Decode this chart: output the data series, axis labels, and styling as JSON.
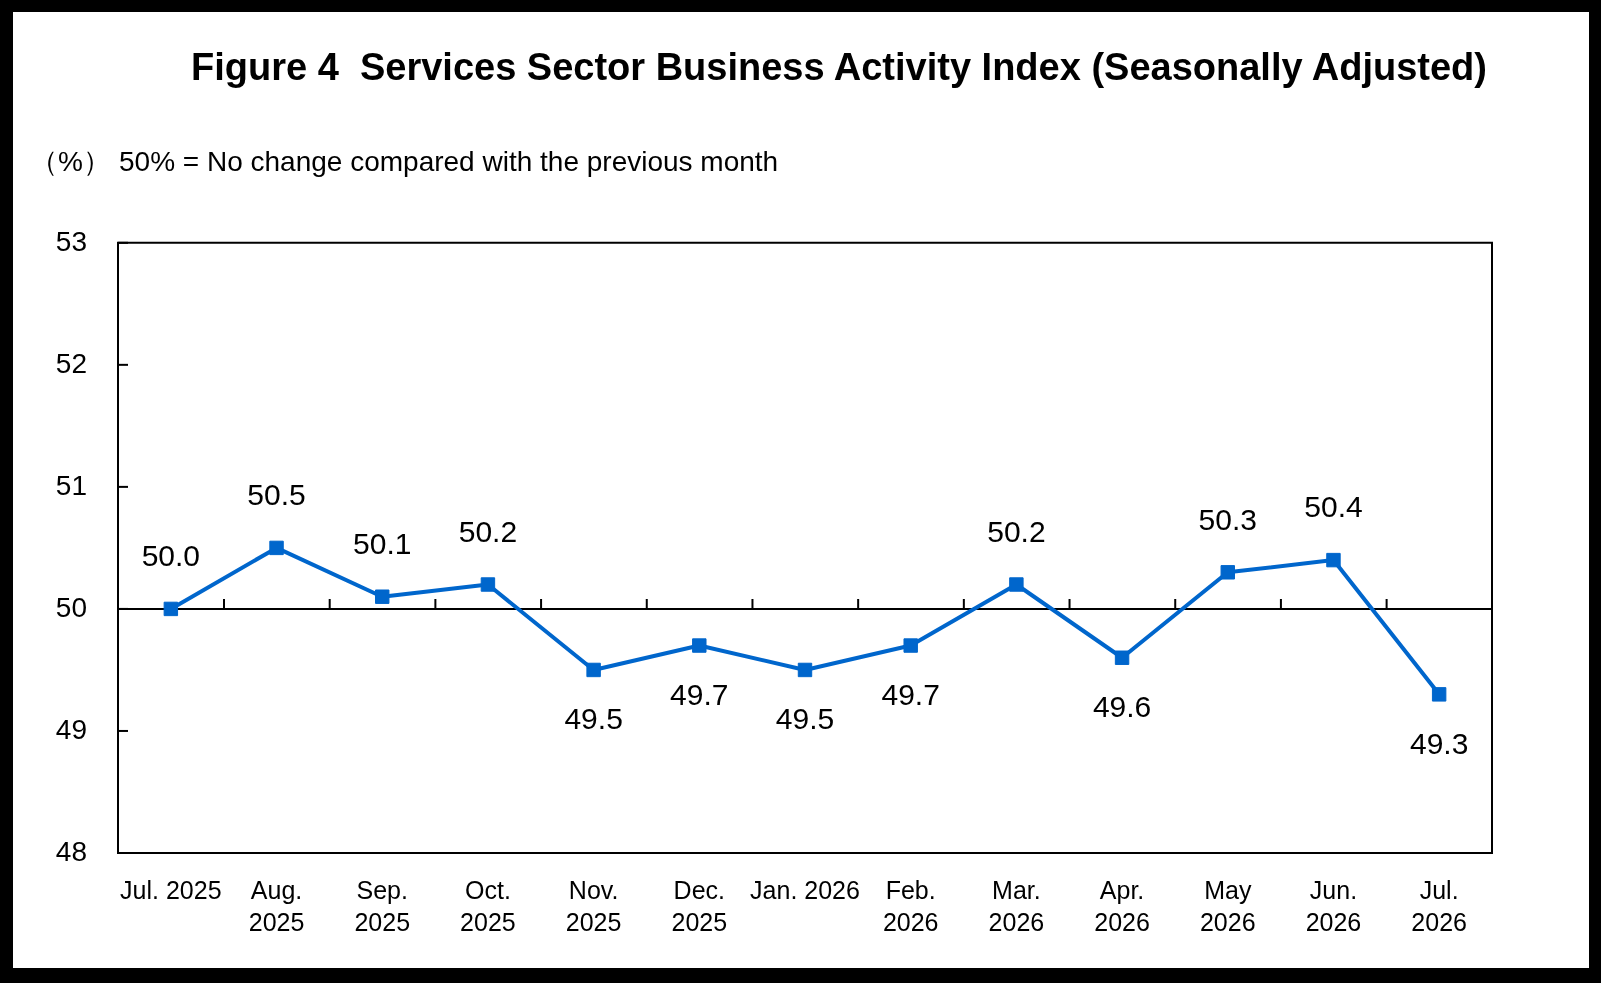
{
  "chart_data": {
    "type": "line",
    "title": "Figure 4  Services Sector Business Activity Index (Seasonally Adjusted)",
    "ylabel": "（%）",
    "annotations": [
      "50% = No change compared with the previous month"
    ],
    "categories": [
      "Jul. 2025",
      "Aug.\n2025",
      "Sep.\n2025",
      "Oct.\n2025",
      "Nov.\n2025",
      "Dec.\n2025",
      "Jan. 2026",
      "Feb.\n2026",
      "Mar.\n2026",
      "Apr.\n2026",
      "May\n2026",
      "Jun.\n2026",
      "Jul.\n2026"
    ],
    "series": [
      {
        "color": "#0066cc",
        "values": [
          50.0,
          50.5,
          50.1,
          50.2,
          49.5,
          49.7,
          49.5,
          49.7,
          50.2,
          49.6,
          50.3,
          50.4,
          49.3
        ],
        "value_labels": [
          "50.0",
          "50.5",
          "50.1",
          "50.2",
          "49.5",
          "49.7",
          "49.5",
          "49.7",
          "50.2",
          "49.6",
          "50.3",
          "50.4",
          "49.3"
        ]
      }
    ],
    "ylim": [
      48,
      53
    ],
    "yticks": [
      48,
      49,
      50,
      51,
      52,
      53
    ],
    "ref_lines": [
      {
        "axis": "y",
        "value": 50,
        "color": "#000000"
      }
    ],
    "marker": "square",
    "legend": false
  }
}
